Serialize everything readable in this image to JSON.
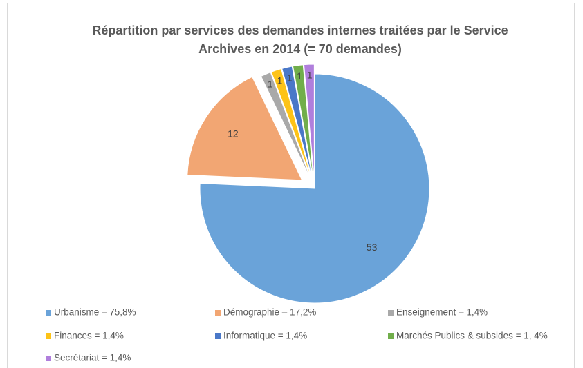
{
  "chart_data": {
    "type": "pie",
    "title": [
      "Répartition par services des demandes internes traitées par le Service",
      "Archives en 2014 (= 70 demandes)"
    ],
    "categories": [
      "Urbanisme – 75,8%",
      "Démographie – 17,2%",
      "Enseignement – 1,4%",
      "Finances = 1,4%",
      "Informatique = 1,4%",
      "Marchés Publics & subsides = 1, 4%",
      "Secrétariat = 1,4%"
    ],
    "values": [
      53,
      12,
      1,
      1,
      1,
      1,
      1
    ],
    "colors": [
      "#6aa3d9",
      "#f2a673",
      "#a9a9a9",
      "#fdc317",
      "#4a78c8",
      "#71ae4b",
      "#b07fdc"
    ],
    "legend": "bottom"
  }
}
